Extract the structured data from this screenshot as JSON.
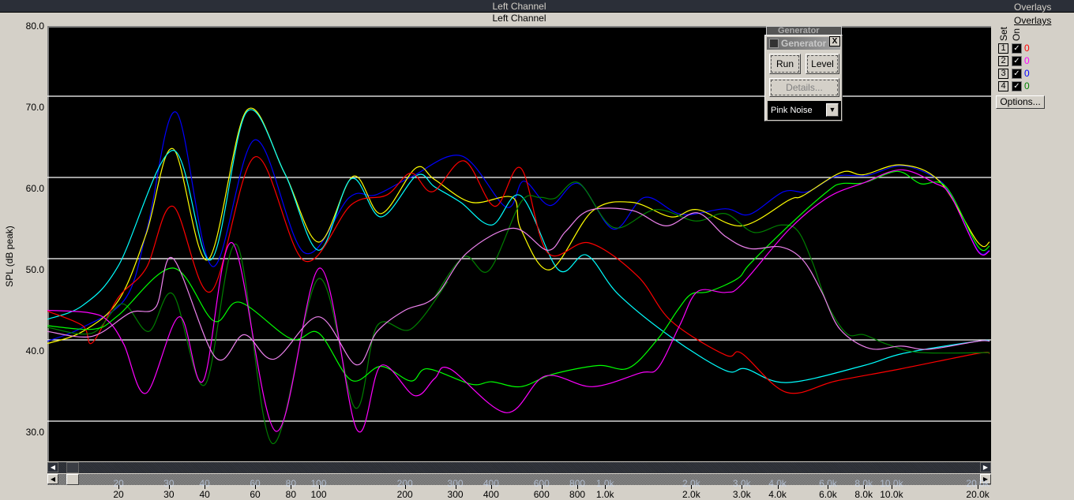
{
  "window": {
    "title": "Left Channel",
    "overlays_top": "Overlays"
  },
  "chart_header": {
    "title": "Left Channel"
  },
  "overlays_panel": {
    "title": "Overlays",
    "col_set": "Set",
    "col_on": "On",
    "rows": [
      {
        "set": "1",
        "on": true,
        "value": "0",
        "color": "#ff0000"
      },
      {
        "set": "2",
        "on": true,
        "value": "0",
        "color": "#ff00ff"
      },
      {
        "set": "3",
        "on": true,
        "value": "0",
        "color": "#0000ff"
      },
      {
        "set": "4",
        "on": true,
        "value": "0",
        "color": "#008000"
      }
    ],
    "options_label": "Options..."
  },
  "generator": {
    "title": "Generator",
    "close": "X",
    "run_label": "Run",
    "level_label": "Level",
    "details_label": "Details...",
    "signal": "Pink Noise"
  },
  "chart_data": {
    "type": "line",
    "ylabel": "SPL (dB peak)",
    "xlabel": "",
    "x_scale": "log",
    "xlim": [
      11.3,
      22000
    ],
    "ylim": [
      26.5,
      80
    ],
    "y_ticks": [
      "80.0",
      "70.0",
      "60.0",
      "50.0",
      "40.0",
      "30.0"
    ],
    "x_ticks": [
      {
        "f": 20,
        "label": "20"
      },
      {
        "f": 30,
        "label": "30"
      },
      {
        "f": 40,
        "label": "40"
      },
      {
        "f": 60,
        "label": "60"
      },
      {
        "f": 80,
        "label": "80"
      },
      {
        "f": 100,
        "label": "100"
      },
      {
        "f": 200,
        "label": "200"
      },
      {
        "f": 300,
        "label": "300"
      },
      {
        "f": 400,
        "label": "400"
      },
      {
        "f": 600,
        "label": "600"
      },
      {
        "f": 800,
        "label": "800"
      },
      {
        "f": 1000,
        "label": "1.0k"
      },
      {
        "f": 2000,
        "label": "2.0k"
      },
      {
        "f": 3000,
        "label": "3.0k"
      },
      {
        "f": 4000,
        "label": "4.0k"
      },
      {
        "f": 6000,
        "label": "6.0k"
      },
      {
        "f": 8000,
        "label": "8.0k"
      },
      {
        "f": 10000,
        "label": "10.0k"
      },
      {
        "f": 20000,
        "label": "20.0k"
      }
    ],
    "grid": true,
    "background": "#000000",
    "series": [
      {
        "color": "#0000ff",
        "points": [
          [
            11.3,
            41.3
          ],
          [
            15,
            43
          ],
          [
            21.3,
            46.7
          ],
          [
            25.3,
            55.4
          ],
          [
            31.8,
            69.5
          ],
          [
            42.6,
            50.5
          ],
          [
            60,
            66.1
          ],
          [
            89,
            52.2
          ],
          [
            128,
            59
          ],
          [
            158,
            59.3
          ],
          [
            210,
            61.5
          ],
          [
            316,
            64.1
          ],
          [
            452,
            57.8
          ],
          [
            520,
            61
          ],
          [
            642,
            58
          ],
          [
            809,
            60.7
          ],
          [
            1070,
            55.1
          ],
          [
            1375,
            59
          ],
          [
            1850,
            56.9
          ],
          [
            2630,
            57.6
          ],
          [
            3190,
            56.9
          ],
          [
            4200,
            59.7
          ],
          [
            5100,
            59.7
          ],
          [
            6400,
            61.6
          ],
          [
            8200,
            61.7
          ],
          [
            10800,
            62.9
          ],
          [
            14100,
            61.5
          ],
          [
            16100,
            59.3
          ],
          [
            20000,
            52.5
          ],
          [
            22000,
            52.5
          ]
        ]
      },
      {
        "color": "#ffff00",
        "points": [
          [
            11.3,
            41
          ],
          [
            15,
            42.5
          ],
          [
            20,
            46.3
          ],
          [
            25,
            54.5
          ],
          [
            31,
            65
          ],
          [
            41,
            51.3
          ],
          [
            56,
            69.7
          ],
          [
            76,
            62
          ],
          [
            100,
            53.5
          ],
          [
            132,
            61.6
          ],
          [
            165,
            57
          ],
          [
            218,
            62.6
          ],
          [
            254,
            61.2
          ],
          [
            341,
            58.4
          ],
          [
            475,
            59
          ],
          [
            508,
            55.1
          ],
          [
            642,
            50.1
          ],
          [
            902,
            57.3
          ],
          [
            1240,
            58.4
          ],
          [
            1700,
            56.6
          ],
          [
            2100,
            57.5
          ],
          [
            3000,
            55.5
          ],
          [
            4400,
            58.7
          ],
          [
            4900,
            59.2
          ],
          [
            6700,
            62.1
          ],
          [
            8000,
            61.8
          ],
          [
            10800,
            63
          ],
          [
            14700,
            61
          ],
          [
            20000,
            53.5
          ],
          [
            22000,
            53.5
          ]
        ]
      },
      {
        "color": "#00ffff",
        "points": [
          [
            11.3,
            44
          ],
          [
            15,
            45.7
          ],
          [
            20,
            50.6
          ],
          [
            31,
            64.8
          ],
          [
            42,
            51.3
          ],
          [
            56,
            69.5
          ],
          [
            76,
            62
          ],
          [
            100,
            52.5
          ],
          [
            130,
            61.3
          ],
          [
            165,
            56.6
          ],
          [
            220,
            61.7
          ],
          [
            254,
            60.3
          ],
          [
            313,
            58.4
          ],
          [
            402,
            55.6
          ],
          [
            508,
            59.2
          ],
          [
            687,
            50.1
          ],
          [
            862,
            51.9
          ],
          [
            1110,
            47.1
          ],
          [
            1700,
            41.8
          ],
          [
            2630,
            37.7
          ],
          [
            3100,
            37.9
          ],
          [
            4300,
            36.2
          ],
          [
            8000,
            38.3
          ],
          [
            11000,
            39.8
          ],
          [
            20000,
            41.3
          ],
          [
            22000,
            41.3
          ]
        ]
      },
      {
        "color": "#ff0000",
        "points": [
          [
            11.3,
            45
          ],
          [
            15,
            43.2
          ],
          [
            16.2,
            41.1
          ],
          [
            20,
            46.7
          ],
          [
            25,
            50.3
          ],
          [
            31,
            57.9
          ],
          [
            42,
            47.4
          ],
          [
            60,
            64
          ],
          [
            89,
            51.2
          ],
          [
            130,
            58.1
          ],
          [
            173,
            59.3
          ],
          [
            210,
            62
          ],
          [
            250,
            59.7
          ],
          [
            322,
            63.5
          ],
          [
            412,
            57.9
          ],
          [
            508,
            62.6
          ],
          [
            630,
            52.2
          ],
          [
            880,
            53.4
          ],
          [
            1300,
            49.3
          ],
          [
            1700,
            43.8
          ],
          [
            2630,
            39.6
          ],
          [
            3000,
            39.8
          ],
          [
            4300,
            35
          ],
          [
            6400,
            36.4
          ],
          [
            10800,
            37.9
          ],
          [
            20000,
            39.8
          ],
          [
            22000,
            39.8
          ]
        ]
      },
      {
        "color": "#008000",
        "points": [
          [
            11.3,
            43
          ],
          [
            16.2,
            42.3
          ],
          [
            20.6,
            45.9
          ],
          [
            25.5,
            42.5
          ],
          [
            31,
            47.1
          ],
          [
            40,
            35.9
          ],
          [
            51.7,
            53.2
          ],
          [
            69,
            28.7
          ],
          [
            100,
            49
          ],
          [
            134,
            33.1
          ],
          [
            160,
            43.2
          ],
          [
            210,
            42.8
          ],
          [
            280,
            48.5
          ],
          [
            254,
            46.7
          ],
          [
            322,
            51.7
          ],
          [
            393,
            50
          ],
          [
            508,
            58.4
          ],
          [
            592,
            59
          ],
          [
            669,
            58.9
          ],
          [
            809,
            60.8
          ],
          [
            1070,
            55.3
          ],
          [
            1500,
            57.5
          ],
          [
            2070,
            56.1
          ],
          [
            2630,
            57
          ],
          [
            3300,
            54.7
          ],
          [
            4100,
            55.6
          ],
          [
            4700,
            54.9
          ],
          [
            5300,
            51
          ],
          [
            6000,
            45.7
          ],
          [
            7000,
            42.2
          ],
          [
            8000,
            42.1
          ],
          [
            9700,
            40.9
          ],
          [
            12600,
            39.9
          ],
          [
            22000,
            39.9
          ]
        ]
      },
      {
        "color": "#00ff00",
        "points": [
          [
            11.3,
            43.2
          ],
          [
            16.5,
            42.8
          ],
          [
            20,
            44.5
          ],
          [
            31,
            50.3
          ],
          [
            43,
            43.8
          ],
          [
            53,
            46.1
          ],
          [
            80,
            41.6
          ],
          [
            100,
            42.3
          ],
          [
            130,
            36.5
          ],
          [
            165,
            38.2
          ],
          [
            210,
            36.4
          ],
          [
            240,
            37.9
          ],
          [
            341,
            36
          ],
          [
            402,
            36.3
          ],
          [
            508,
            35.7
          ],
          [
            652,
            37.2
          ],
          [
            944,
            38.3
          ],
          [
            1210,
            38
          ],
          [
            1530,
            41.6
          ],
          [
            1790,
            45.1
          ],
          [
            2000,
            47.1
          ],
          [
            2300,
            47.4
          ],
          [
            2900,
            49
          ],
          [
            3200,
            50.8
          ],
          [
            4400,
            55.6
          ],
          [
            6000,
            59.8
          ],
          [
            6700,
            60.7
          ],
          [
            8000,
            60.8
          ],
          [
            10500,
            62.2
          ],
          [
            12600,
            60.7
          ],
          [
            15500,
            60.3
          ],
          [
            20000,
            53
          ],
          [
            22000,
            53
          ]
        ]
      },
      {
        "color": "#ff00ff",
        "points": [
          [
            11.3,
            45.1
          ],
          [
            15.8,
            44.8
          ],
          [
            18.4,
            43.8
          ],
          [
            20.9,
            40.9
          ],
          [
            25,
            34.9
          ],
          [
            32.6,
            44.3
          ],
          [
            39.5,
            36.4
          ],
          [
            50,
            53.4
          ],
          [
            71,
            30.2
          ],
          [
            101,
            50.3
          ],
          [
            136,
            30.4
          ],
          [
            165,
            38.3
          ],
          [
            216,
            34.6
          ],
          [
            254,
            36.7
          ],
          [
            287,
            37.9
          ],
          [
            452,
            32.5
          ],
          [
            617,
            37
          ],
          [
            902,
            35.7
          ],
          [
            1330,
            37.4
          ],
          [
            1530,
            38
          ],
          [
            1820,
            43.2
          ],
          [
            2100,
            47.4
          ],
          [
            2630,
            47.3
          ],
          [
            3000,
            48.3
          ],
          [
            4400,
            55.1
          ],
          [
            6000,
            59
          ],
          [
            8000,
            60.8
          ],
          [
            10800,
            62.4
          ],
          [
            14100,
            60.8
          ],
          [
            16100,
            59.2
          ],
          [
            20000,
            52.4
          ],
          [
            22000,
            52.4
          ]
        ]
      },
      {
        "color": "#ee82ee",
        "points": [
          [
            11.3,
            42.5
          ],
          [
            16.2,
            41.9
          ],
          [
            22,
            44.8
          ],
          [
            27,
            45.5
          ],
          [
            31,
            51.5
          ],
          [
            43.6,
            39.3
          ],
          [
            55,
            42.1
          ],
          [
            70,
            39.1
          ],
          [
            100,
            44.3
          ],
          [
            135,
            38.4
          ],
          [
            160,
            42.5
          ],
          [
            200,
            45.1
          ],
          [
            254,
            46.7
          ],
          [
            330,
            52.2
          ],
          [
            478,
            55.2
          ],
          [
            630,
            52.5
          ],
          [
            728,
            54.8
          ],
          [
            880,
            57.4
          ],
          [
            1240,
            57.4
          ],
          [
            1630,
            55.5
          ],
          [
            2100,
            57.1
          ],
          [
            2630,
            54.2
          ],
          [
            3200,
            52.7
          ],
          [
            4100,
            52.9
          ],
          [
            4900,
            51.3
          ],
          [
            5700,
            47.4
          ],
          [
            6600,
            42.8
          ],
          [
            8400,
            40.4
          ],
          [
            10800,
            40.7
          ],
          [
            13500,
            40.3
          ],
          [
            20000,
            41.3
          ],
          [
            22000,
            41.3
          ]
        ]
      }
    ]
  }
}
